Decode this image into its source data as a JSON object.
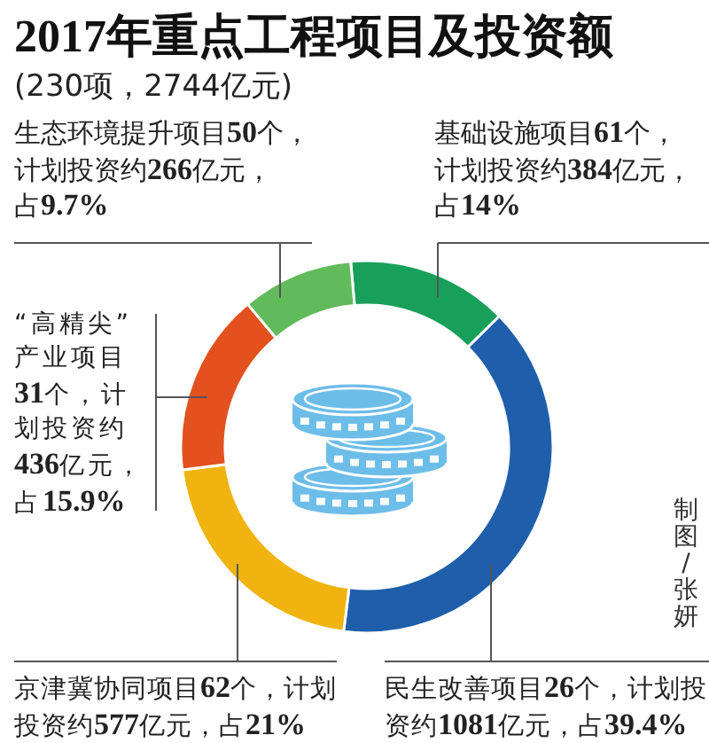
{
  "chart_data": {
    "type": "donut",
    "title": "2017年重点工程项目及投资额",
    "subtitle": "(230项，2744亿元)",
    "categories": [
      "基础设施项目61个，计划投资约384亿元，占14%",
      "民生改善项目26个，计划投资约1081亿元，占39.4%",
      "京津冀协同项目62个，计划投资约577亿元，占21%",
      "“高精尖”产业项目31个，计划投资约436亿元，占15.9%",
      "生态环境提升项目50个，计划投资约266亿元，占9.7%"
    ],
    "values": [
      384,
      1081,
      577,
      436,
      266
    ],
    "colors": [
      "#18a05a",
      "#1f5eab",
      "#f0b30f",
      "#e3511f",
      "#62bb5b"
    ],
    "annotations": [
      "制图/张妍"
    ]
  }
}
